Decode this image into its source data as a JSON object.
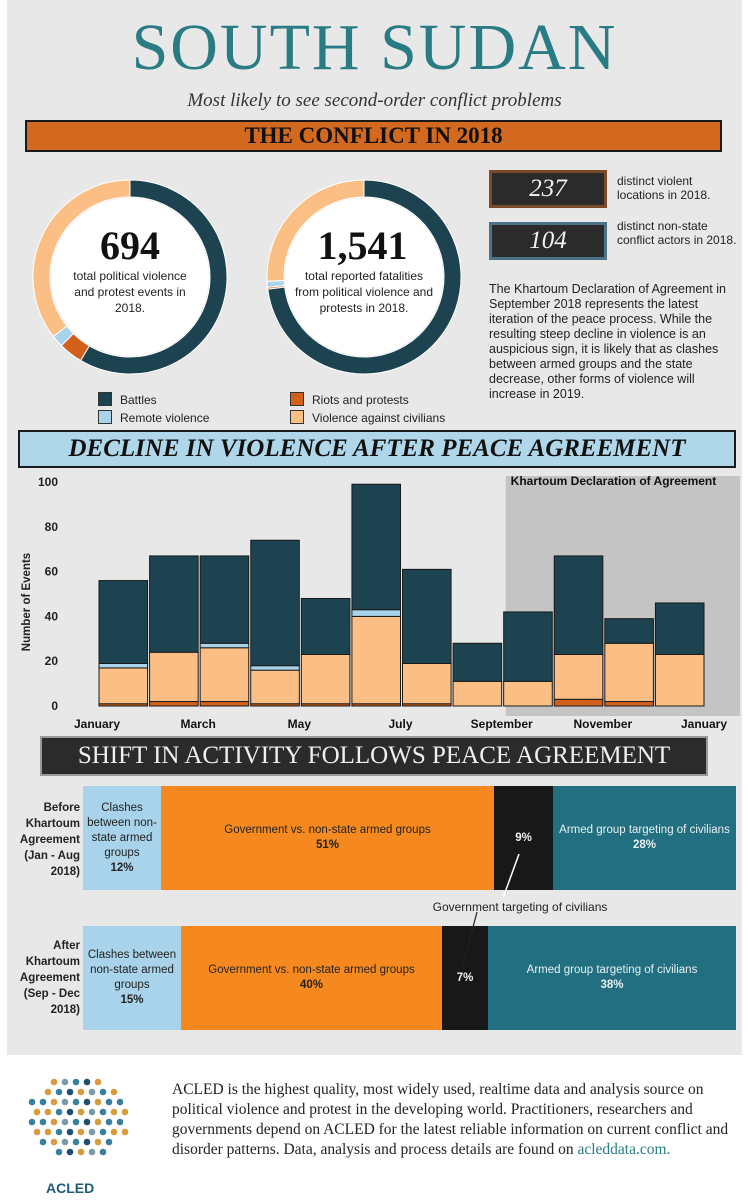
{
  "header": {
    "title": "SOUTH SUDAN",
    "subtitle": "Most likely to see second-order conflict problems",
    "banner1": "THE CONFLICT IN 2018",
    "banner2": "DECLINE IN VIOLENCE AFTER PEACE AGREEMENT",
    "banner3": "SHIFT IN ACTIVITY FOLLOWS PEACE AGREEMENT"
  },
  "colors": {
    "battles": "#1d4350",
    "remote_violence": "#a9d3ea",
    "riots_protests": "#d2601a",
    "violence_civilians": "#fbbf85",
    "teal_title": "#2a7c84",
    "orange_bar": "#f5891f",
    "armed_group_teal": "#216f80",
    "black": "#181818"
  },
  "donuts": [
    {
      "number": "694",
      "text": "total political violence and protest events in 2018.",
      "shares": {
        "battles": 0.585,
        "riots_protests": 0.04,
        "remote_violence": 0.02,
        "violence_civilians": 0.355
      }
    },
    {
      "number": "1,541",
      "text": "total reported fatalities from political violence and protests in 2018.",
      "shares": {
        "battles": 0.73,
        "riots_protests": 0.003,
        "remote_violence": 0.01,
        "violence_civilians": 0.257
      }
    }
  ],
  "legend": {
    "battles": "Battles",
    "remote_violence": "Remote violence",
    "riots_protests": "Riots and protests",
    "violence_civilians": "Violence against civilians"
  },
  "stats": [
    {
      "value": "237",
      "text": "distinct violent locations in 2018."
    },
    {
      "value": "104",
      "text": "distinct non-state conflict actors in 2018."
    }
  ],
  "paragraph": "The Khartoum Declaration of Agreement in September 2018 represents the latest iteration of the peace process. While the resulting steep decline in violence is an auspicious sign, it is likely that as clashes between armed groups and the state decrease, other forms of violence will increase in 2019.",
  "chart_data": {
    "type": "bar",
    "stacked": true,
    "ylabel": "Number of Events",
    "ylim": [
      0,
      100
    ],
    "yticks": [
      0,
      20,
      40,
      60,
      80,
      100
    ],
    "xtick_labels": [
      "January",
      "March",
      "May",
      "July",
      "September",
      "November",
      "January"
    ],
    "categories": [
      "Jan",
      "Feb",
      "Mar",
      "Apr",
      "May",
      "Jun",
      "Jul",
      "Aug",
      "Sep",
      "Oct",
      "Nov",
      "Dec"
    ],
    "annotation": "Khartoum Declaration of Agreement",
    "annotation_start_index": 8,
    "series": [
      {
        "name": "Riots and protests",
        "key": "riots_protests",
        "values": [
          1,
          2,
          2,
          1,
          1,
          1,
          1,
          0,
          0,
          3,
          2,
          0
        ]
      },
      {
        "name": "Violence against civilians",
        "key": "violence_civilians",
        "values": [
          16,
          22,
          24,
          15,
          22,
          39,
          18,
          11,
          11,
          20,
          26,
          23
        ]
      },
      {
        "name": "Remote violence",
        "key": "remote_violence",
        "values": [
          2,
          0,
          2,
          2,
          0,
          3,
          0,
          0,
          0,
          0,
          0,
          0
        ]
      },
      {
        "name": "Battles",
        "key": "battles",
        "values": [
          37,
          43,
          39,
          56,
          25,
          56,
          42,
          17,
          31,
          44,
          11,
          23
        ]
      }
    ],
    "shift": {
      "rows": [
        {
          "label": "Before Khartoum Agreement (Jan - Aug 2018)",
          "segments": [
            {
              "name": "Clashes between non-state armed groups",
              "value": "12%",
              "pct": 12
            },
            {
              "name": "Government vs. non-state armed groups",
              "value": "51%",
              "pct": 51
            },
            {
              "name": "Government targeting of civilians",
              "value": "9%",
              "pct": 9
            },
            {
              "name": "Armed group targeting of civilians",
              "value": "28%",
              "pct": 28
            }
          ]
        },
        {
          "label": "After Khartoum Agreement (Sep - Dec 2018)",
          "segments": [
            {
              "name": "Clashes between non-state armed groups",
              "value": "15%",
              "pct": 15
            },
            {
              "name": "Government vs. non-state armed groups",
              "value": "40%",
              "pct": 40
            },
            {
              "name": "Government targeting of civilians",
              "value": "7%",
              "pct": 7
            },
            {
              "name": "Armed group targeting of civilians",
              "value": "38%",
              "pct": 38
            }
          ]
        }
      ],
      "callout": "Government targeting of civilians"
    }
  },
  "footer": {
    "text": "ACLED is the highest quality, most widely used, realtime data and analysis source on political violence and protest in the developing world. Practitioners, researchers and governments depend on ACLED for the latest reliable information on current conflict and disorder patterns. Data, analysis and process details are found on",
    "link": "acleddata.com.",
    "logo_label": "ACLED"
  }
}
